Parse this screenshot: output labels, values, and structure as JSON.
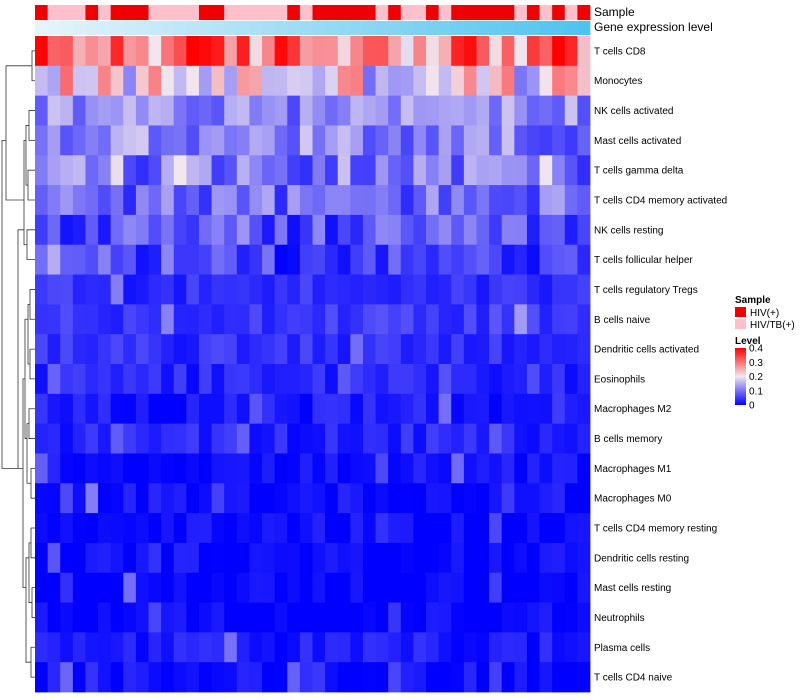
{
  "chart_data": {
    "type": "heatmap",
    "title": "",
    "annotation_tracks": [
      {
        "name": "Sample"
      },
      {
        "name": "Gene expression level"
      }
    ],
    "rows": [
      "T cells CD8",
      "Monocytes",
      "NK cells activated",
      "Mast cells activated",
      "T cells gamma delta",
      "T cells CD4 memory activated",
      "NK cells resting",
      "T cells follicular helper",
      "T cells regulatory  Tregs",
      "B cells naive",
      "Dendritic cells activated",
      "Eosinophils",
      "Macrophages M2",
      "B cells memory",
      "Macrophages M1",
      "Macrophages M0",
      "T cells CD4 memory resting",
      "Dendritic cells resting",
      "Mast cells resting",
      "Neutrophils",
      "Plasma cells",
      "T cells CD4 naive"
    ],
    "n_columns": 44,
    "row_base_level": [
      0.3,
      0.2,
      0.12,
      0.11,
      0.1,
      0.09,
      0.06,
      0.06,
      0.04,
      0.05,
      0.04,
      0.03,
      0.02,
      0.03,
      0.01,
      0.01,
      0.005,
      0.005,
      0.0,
      0.0,
      0.02,
      0.01
    ],
    "sample_groups": [
      "HIV(+)",
      "HIV/TB(+)",
      "HIV/TB(+)",
      "HIV/TB(+)",
      "HIV(+)",
      "HIV/TB(+)",
      "HIV(+)",
      "HIV(+)",
      "HIV(+)",
      "HIV/TB(+)",
      "HIV/TB(+)",
      "HIV/TB(+)",
      "HIV/TB(+)",
      "HIV(+)",
      "HIV(+)",
      "HIV/TB(+)",
      "HIV/TB(+)",
      "HIV/TB(+)",
      "HIV/TB(+)",
      "HIV/TB(+)",
      "HIV(+)",
      "HIV/TB(+)",
      "HIV(+)",
      "HIV(+)",
      "HIV(+)",
      "HIV(+)",
      "HIV(+)",
      "HIV/TB(+)",
      "HIV(+)",
      "HIV/TB(+)",
      "HIV/TB(+)",
      "HIV(+)",
      "HIV/TB(+)",
      "HIV(+)",
      "HIV(+)",
      "HIV(+)",
      "HIV(+)",
      "HIV(+)",
      "HIV/TB(+)",
      "HIV(+)",
      "HIV/TB(+)",
      "HIV(+)",
      "HIV/TB(+)",
      "HIV(+)"
    ],
    "legend": {
      "sample_title": "Sample",
      "sample_entries": [
        {
          "label": "HIV(+)",
          "color": "#f00000"
        },
        {
          "label": "HIV/TB(+)",
          "color": "#ffc0cb"
        }
      ],
      "level_title": "Level",
      "level_ticks": [
        0.4,
        0.3,
        0.2,
        0.1,
        0
      ],
      "level_range": [
        0,
        0.4
      ]
    },
    "colors": {
      "low": "#0000ff",
      "mid": "#f2e6ef",
      "high": "#ff0000",
      "expr_track_start": "#e6f4fb",
      "expr_track_end": "#4fc3ef"
    }
  }
}
